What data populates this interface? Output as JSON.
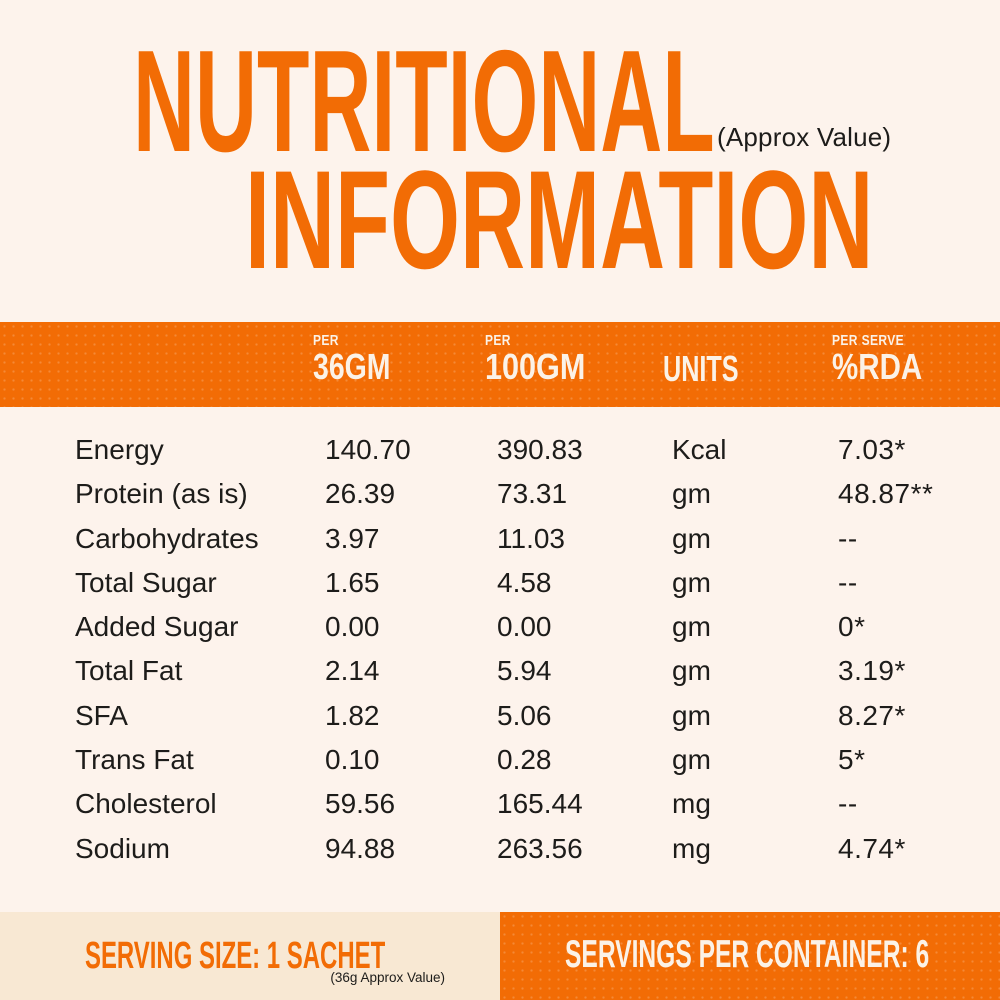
{
  "title": {
    "line1": "NUTRITIONAL",
    "line2": "INFORMATION",
    "approx_note": "(Approx Value)"
  },
  "table": {
    "header": {
      "per36_small": "PER",
      "per36_big": "36GM",
      "per100_small": "PER",
      "per100_big": "100GM",
      "units": "UNITS",
      "rda_small": "PER SERVE",
      "rda_big": "%RDA"
    },
    "rows": [
      {
        "label": "Energy",
        "per36": "140.70",
        "per100": "390.83",
        "unit": "Kcal",
        "rda": "7.03*"
      },
      {
        "label": "Protein (as is)",
        "per36": "26.39",
        "per100": "73.31",
        "unit": "gm",
        "rda": "48.87**"
      },
      {
        "label": "Carbohydrates",
        "per36": "3.97",
        "per100": "11.03",
        "unit": "gm",
        "rda": "--"
      },
      {
        "label": "Total Sugar",
        "per36": "1.65",
        "per100": "4.58",
        "unit": "gm",
        "rda": "--"
      },
      {
        "label": "Added Sugar",
        "per36": "0.00",
        "per100": "0.00",
        "unit": "gm",
        "rda": "0*"
      },
      {
        "label": "Total Fat",
        "per36": "2.14",
        "per100": "5.94",
        "unit": "gm",
        "rda": "3.19*"
      },
      {
        "label": "SFA",
        "per36": "1.82",
        "per100": "5.06",
        "unit": "gm",
        "rda": "8.27*"
      },
      {
        "label": "Trans Fat",
        "per36": "0.10",
        "per100": "0.28",
        "unit": "gm",
        "rda": "5*"
      },
      {
        "label": "Cholesterol",
        "per36": "59.56",
        "per100": "165.44",
        "unit": "mg",
        "rda": "--"
      },
      {
        "label": "Sodium",
        "per36": "94.88",
        "per100": "263.56",
        "unit": "mg",
        "rda": "4.74*"
      }
    ]
  },
  "footer": {
    "serving_size": "SERVING SIZE: 1 SACHET",
    "serving_note": "(36g Approx Value)",
    "servings_per_container": "SERVINGS PER CONTAINER: 6"
  },
  "colors": {
    "orange": "#f26c05",
    "background": "#fdf3ec",
    "cream": "#f8e8d3",
    "ink": "#1d1c1a",
    "band_text": "#fbf2e7"
  }
}
